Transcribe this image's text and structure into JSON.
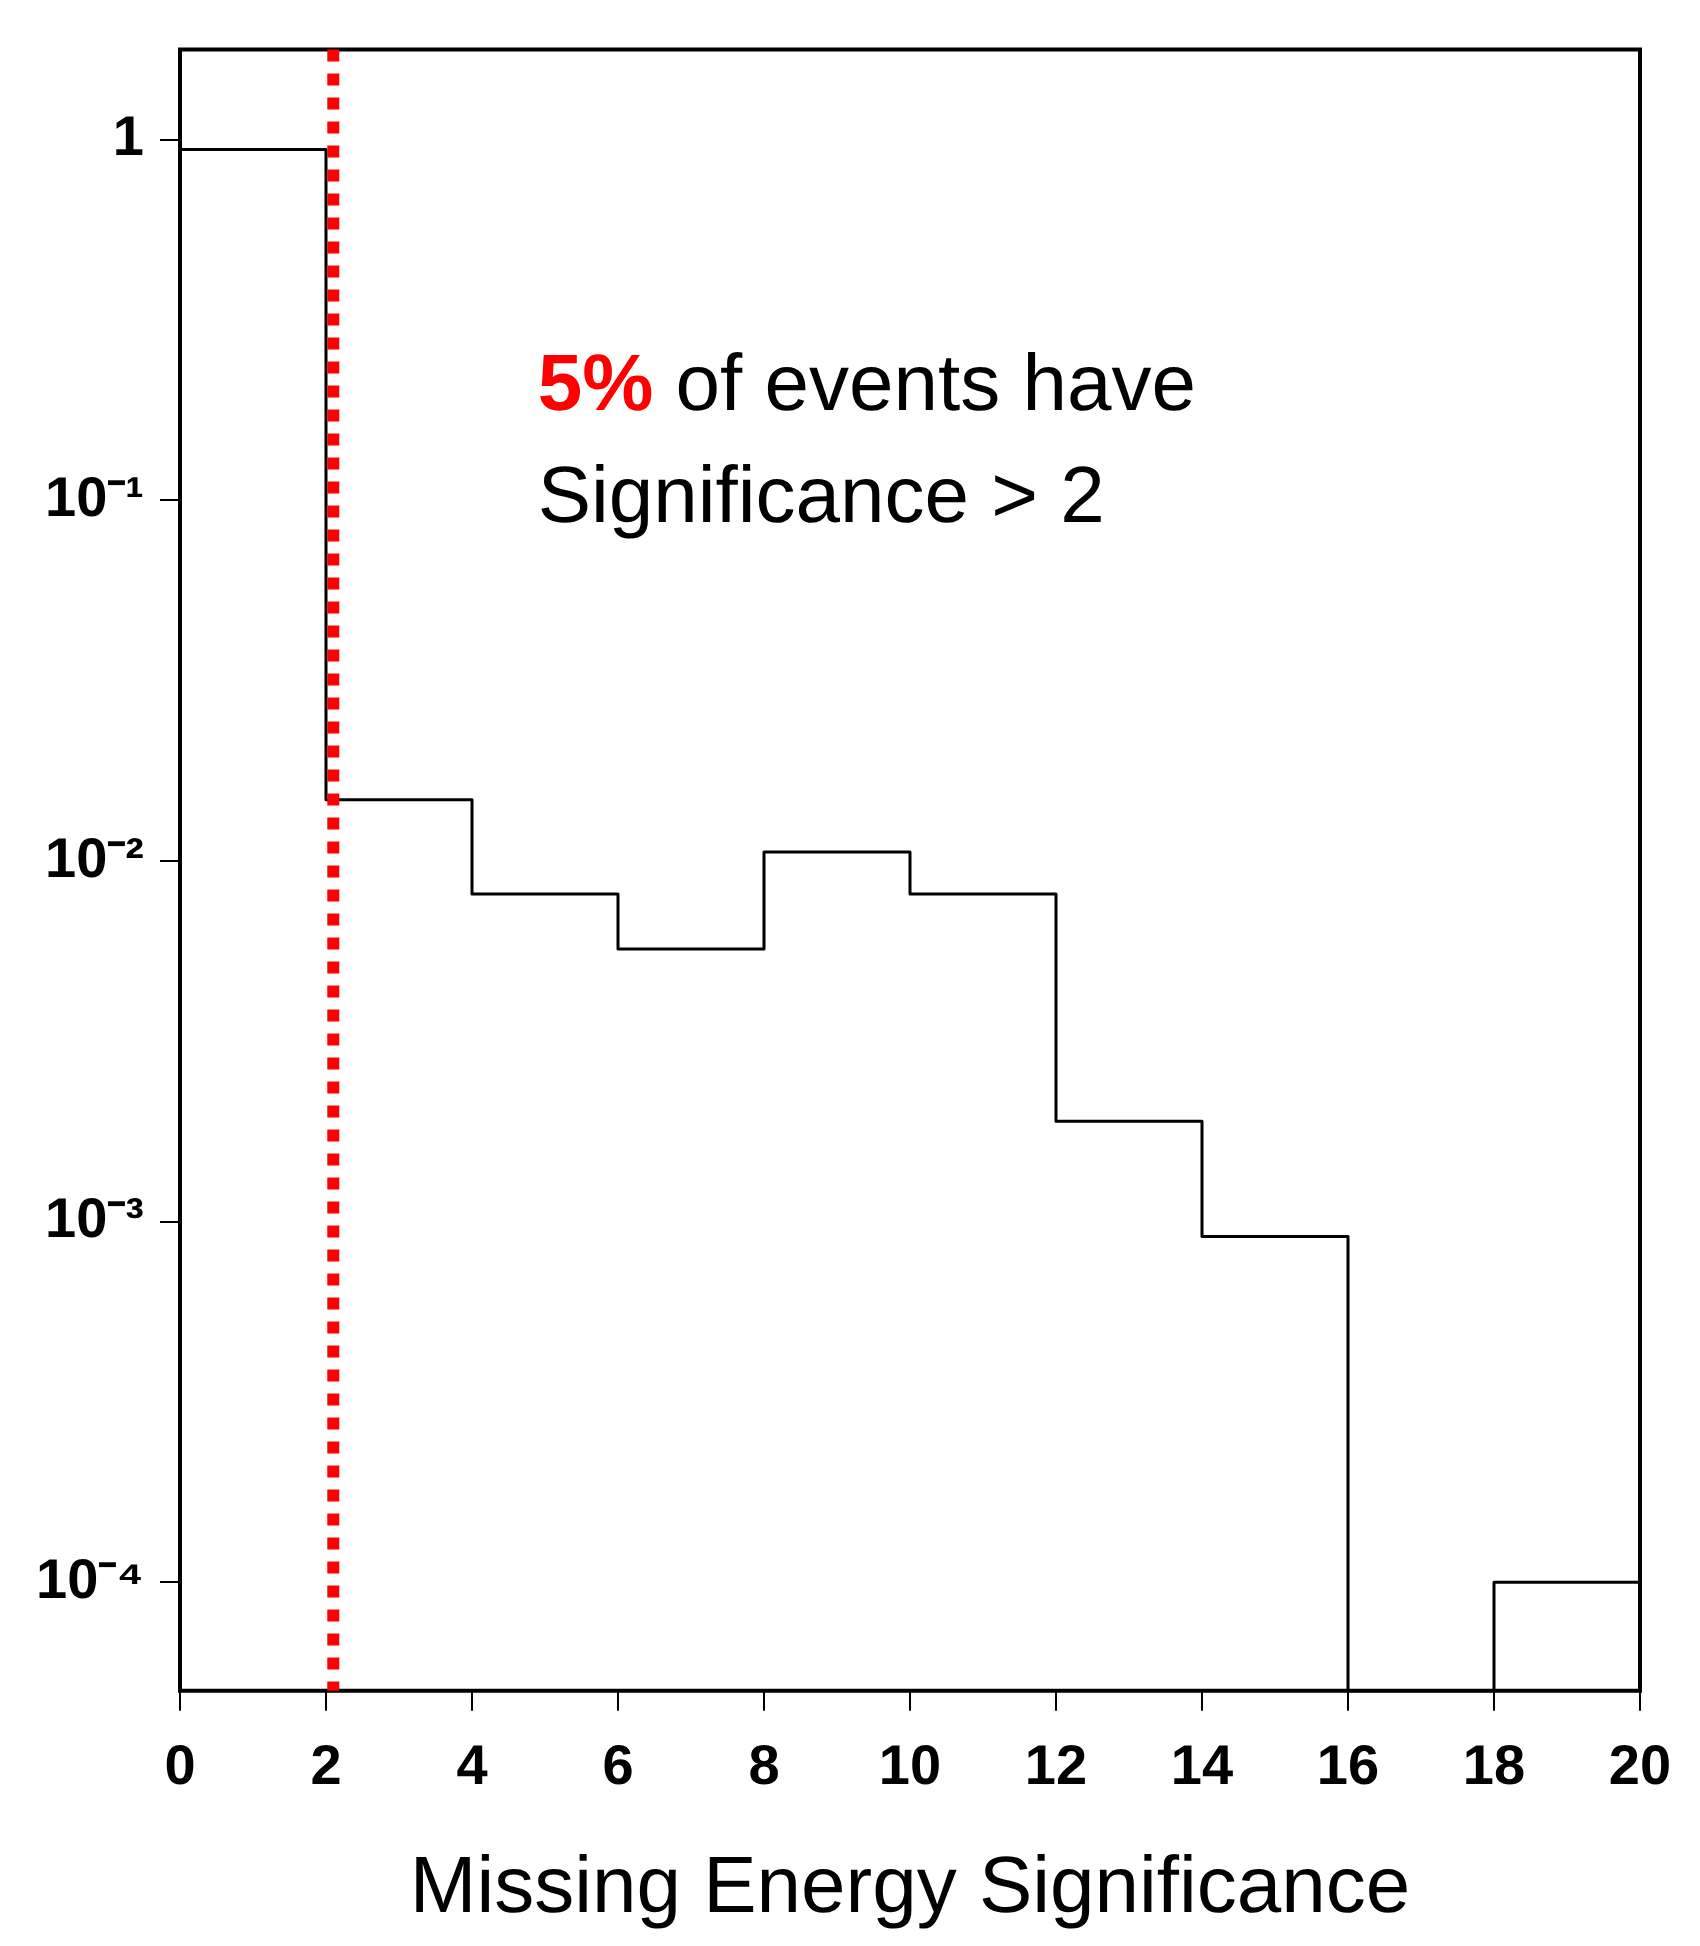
{
  "chart_data": {
    "type": "histogram",
    "xlabel": "Missing Energy Significance",
    "bins": [
      0,
      2,
      4,
      6,
      8,
      10,
      12,
      14,
      16,
      18,
      20
    ],
    "values": [
      0.94,
      0.0148,
      0.0081,
      0.0057,
      0.0106,
      0.0081,
      0.0019,
      0.00091,
      null,
      0.0001
    ],
    "color": "#000000",
    "log": "y",
    "grid": false,
    "legend": false,
    "xlim": [
      0,
      20
    ],
    "xticks": [
      0,
      2,
      4,
      6,
      8,
      10,
      12,
      14,
      16,
      18,
      20
    ],
    "ylim": [
      5e-05,
      1.78
    ],
    "yticks": [
      {
        "value": 1,
        "label": "1"
      },
      {
        "value": 0.1,
        "label": "10⁻¹"
      },
      {
        "value": 0.01,
        "label": "10⁻²"
      },
      {
        "value": 0.001,
        "label": "10⁻³"
      },
      {
        "value": 0.0001,
        "label": "10⁻⁴"
      }
    ],
    "ref_lines": [
      {
        "axis": "x",
        "value": 2.1,
        "color": "#ff0000",
        "line_style": "dotted"
      }
    ],
    "annotations": [
      "5% of events have",
      "Significance > 2"
    ]
  }
}
